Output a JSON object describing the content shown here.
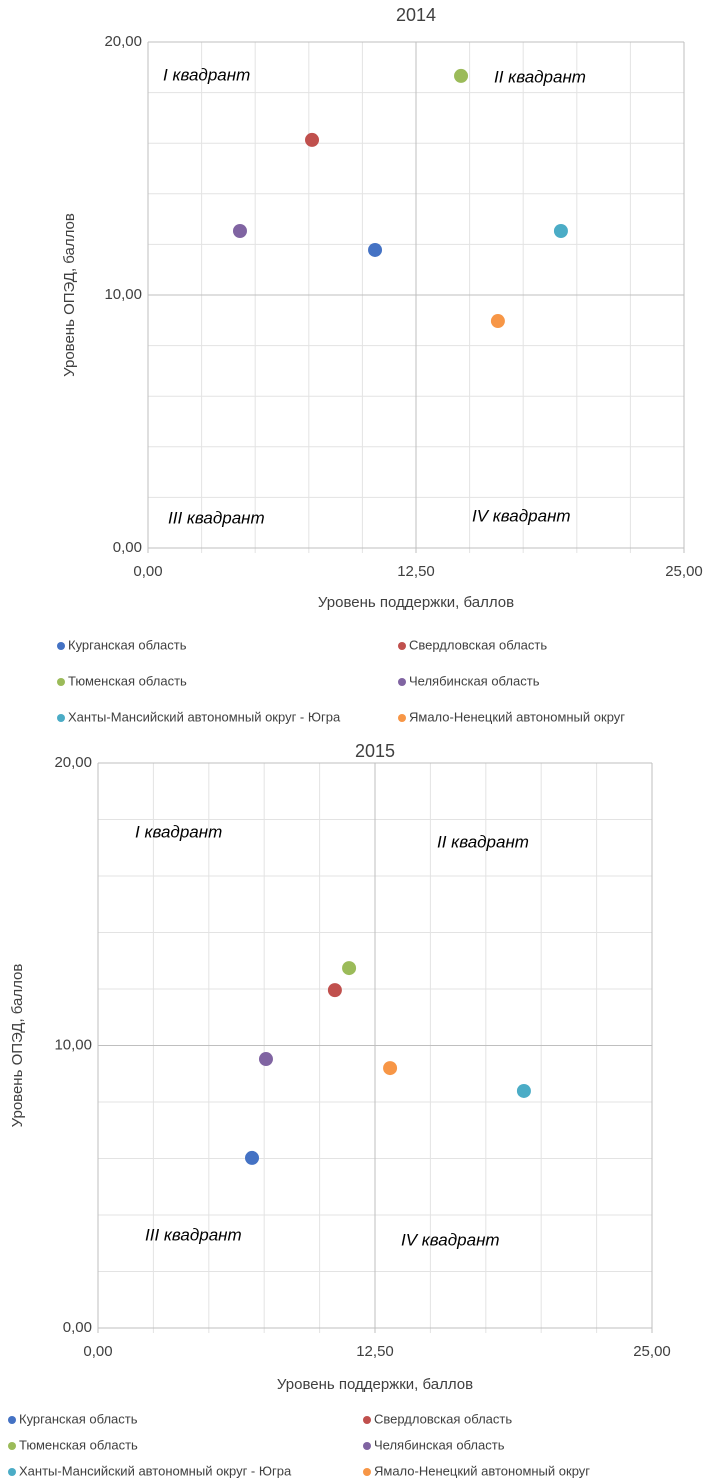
{
  "chart_data": [
    {
      "type": "scatter",
      "title": "2014",
      "x_label": "Уровень поддержки, баллов",
      "y_label": "Уровень ОПЭД, баллов",
      "xlim": [
        0,
        25
      ],
      "ylim": [
        0,
        20
      ],
      "xticks": [
        {
          "value": 0,
          "label": "0,00"
        },
        {
          "value": 12.5,
          "label": "12,50"
        },
        {
          "value": 25,
          "label": "25,00"
        }
      ],
      "yticks": [
        {
          "value": 0,
          "label": "0,00"
        },
        {
          "value": 10,
          "label": "10,00"
        },
        {
          "value": 20,
          "label": "20,00"
        }
      ],
      "minor_xticks": [
        2.5,
        5,
        7.5,
        10,
        15,
        17.5,
        20,
        22.5
      ],
      "minor_yticks": [
        2,
        4,
        6,
        8,
        12,
        14,
        16,
        18
      ],
      "grid": true,
      "legend": "bottom",
      "annotations": [
        "I квадрант",
        "II квадрант",
        "III квадрант",
        "IV квадрант"
      ],
      "series": [
        {
          "name": "Курганская область",
          "color": "#4472c4",
          "x": [
            10.59
          ],
          "y": [
            11.78
          ]
        },
        {
          "name": "Свердловская область",
          "color": "#c0504d",
          "x": [
            7.65
          ],
          "y": [
            16.13
          ]
        },
        {
          "name": "Тюменская область",
          "color": "#9bbb59",
          "x": [
            14.6
          ],
          "y": [
            18.66
          ]
        },
        {
          "name": "Челябинская область",
          "color": "#8064a2",
          "x": [
            4.29
          ],
          "y": [
            12.53
          ]
        },
        {
          "name": "Ханты-Мансийский автономный округ - Югра",
          "color": "#4bacc6",
          "x": [
            19.26
          ],
          "y": [
            12.53
          ]
        },
        {
          "name": "Ямало-Ненецкий автономный округ",
          "color": "#f79646",
          "x": [
            16.32
          ],
          "y": [
            8.97
          ]
        }
      ]
    },
    {
      "type": "scatter",
      "title": "2015",
      "x_label": "Уровень поддержки, баллов",
      "y_label": "Уровень ОПЭД, баллов",
      "xlim": [
        0,
        25
      ],
      "ylim": [
        0,
        20
      ],
      "xticks": [
        {
          "value": 0,
          "label": "0,00"
        },
        {
          "value": 12.5,
          "label": "12,50"
        },
        {
          "value": 25,
          "label": "25,00"
        }
      ],
      "yticks": [
        {
          "value": 0,
          "label": "0,00"
        },
        {
          "value": 10,
          "label": "10,00"
        },
        {
          "value": 20,
          "label": "20,00"
        }
      ],
      "minor_xticks": [
        2.5,
        5,
        7.5,
        10,
        15,
        17.5,
        20,
        22.5
      ],
      "minor_yticks": [
        2,
        4,
        6,
        8,
        12,
        14,
        16,
        18
      ],
      "grid": true,
      "legend": "bottom",
      "annotations": [
        "I квадрант",
        "II квадрант",
        "III квадрант",
        "IV квадрант"
      ],
      "series": [
        {
          "name": "Курганская область",
          "color": "#4472c4",
          "x": [
            6.95
          ],
          "y": [
            6.02
          ]
        },
        {
          "name": "Свердловская область",
          "color": "#c0504d",
          "x": [
            10.69
          ],
          "y": [
            11.96
          ]
        },
        {
          "name": "Тюменская область",
          "color": "#9bbb59",
          "x": [
            11.33
          ],
          "y": [
            12.74
          ]
        },
        {
          "name": "Челябинская область",
          "color": "#8064a2",
          "x": [
            7.58
          ],
          "y": [
            9.52
          ]
        },
        {
          "name": "Ханты-Мансийский автономный округ - Югра",
          "color": "#4bacc6",
          "x": [
            19.22
          ],
          "y": [
            8.39
          ]
        },
        {
          "name": "Ямало-Ненецкий автономный округ",
          "color": "#f79646",
          "x": [
            13.18
          ],
          "y": [
            9.2
          ]
        }
      ]
    }
  ]
}
